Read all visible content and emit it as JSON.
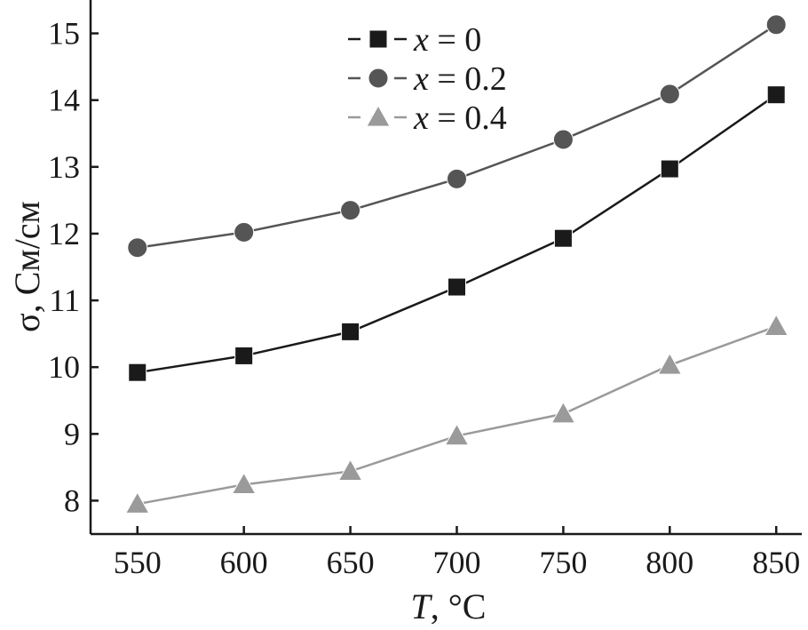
{
  "chart_data": {
    "type": "line",
    "title": "",
    "xlabel": "T, °C",
    "xlabel_var": "T",
    "xlabel_unit": ", °C",
    "ylabel": "σ, См/см",
    "x": [
      550,
      600,
      650,
      700,
      750,
      800,
      850
    ],
    "xlim": [
      528,
      862
    ],
    "ylim": [
      7.5,
      15.5
    ],
    "xticks": [
      550,
      600,
      650,
      700,
      750,
      800,
      850
    ],
    "yticks": [
      8,
      9,
      10,
      11,
      12,
      13,
      14,
      15
    ],
    "grid": false,
    "legend_position": "top-center",
    "series": [
      {
        "name": "x = 0",
        "name_var": "x",
        "name_rest": " = 0",
        "marker": "square",
        "color": "#1a1a1a",
        "line_color": "#1a1a1a",
        "values": [
          9.92,
          10.17,
          10.53,
          11.2,
          11.93,
          12.97,
          14.08
        ]
      },
      {
        "name": "x = 0.2",
        "name_var": "x",
        "name_rest": " = 0.2",
        "marker": "circle",
        "color": "#555555",
        "line_color": "#555555",
        "values": [
          11.79,
          12.02,
          12.35,
          12.82,
          13.41,
          14.09,
          15.13
        ]
      },
      {
        "name": "x = 0.4",
        "name_var": "x",
        "name_rest": " = 0.4",
        "marker": "triangle",
        "color": "#9a9a9a",
        "line_color": "#9a9a9a",
        "values": [
          7.95,
          8.24,
          8.44,
          8.97,
          9.3,
          10.03,
          10.61
        ]
      }
    ]
  }
}
